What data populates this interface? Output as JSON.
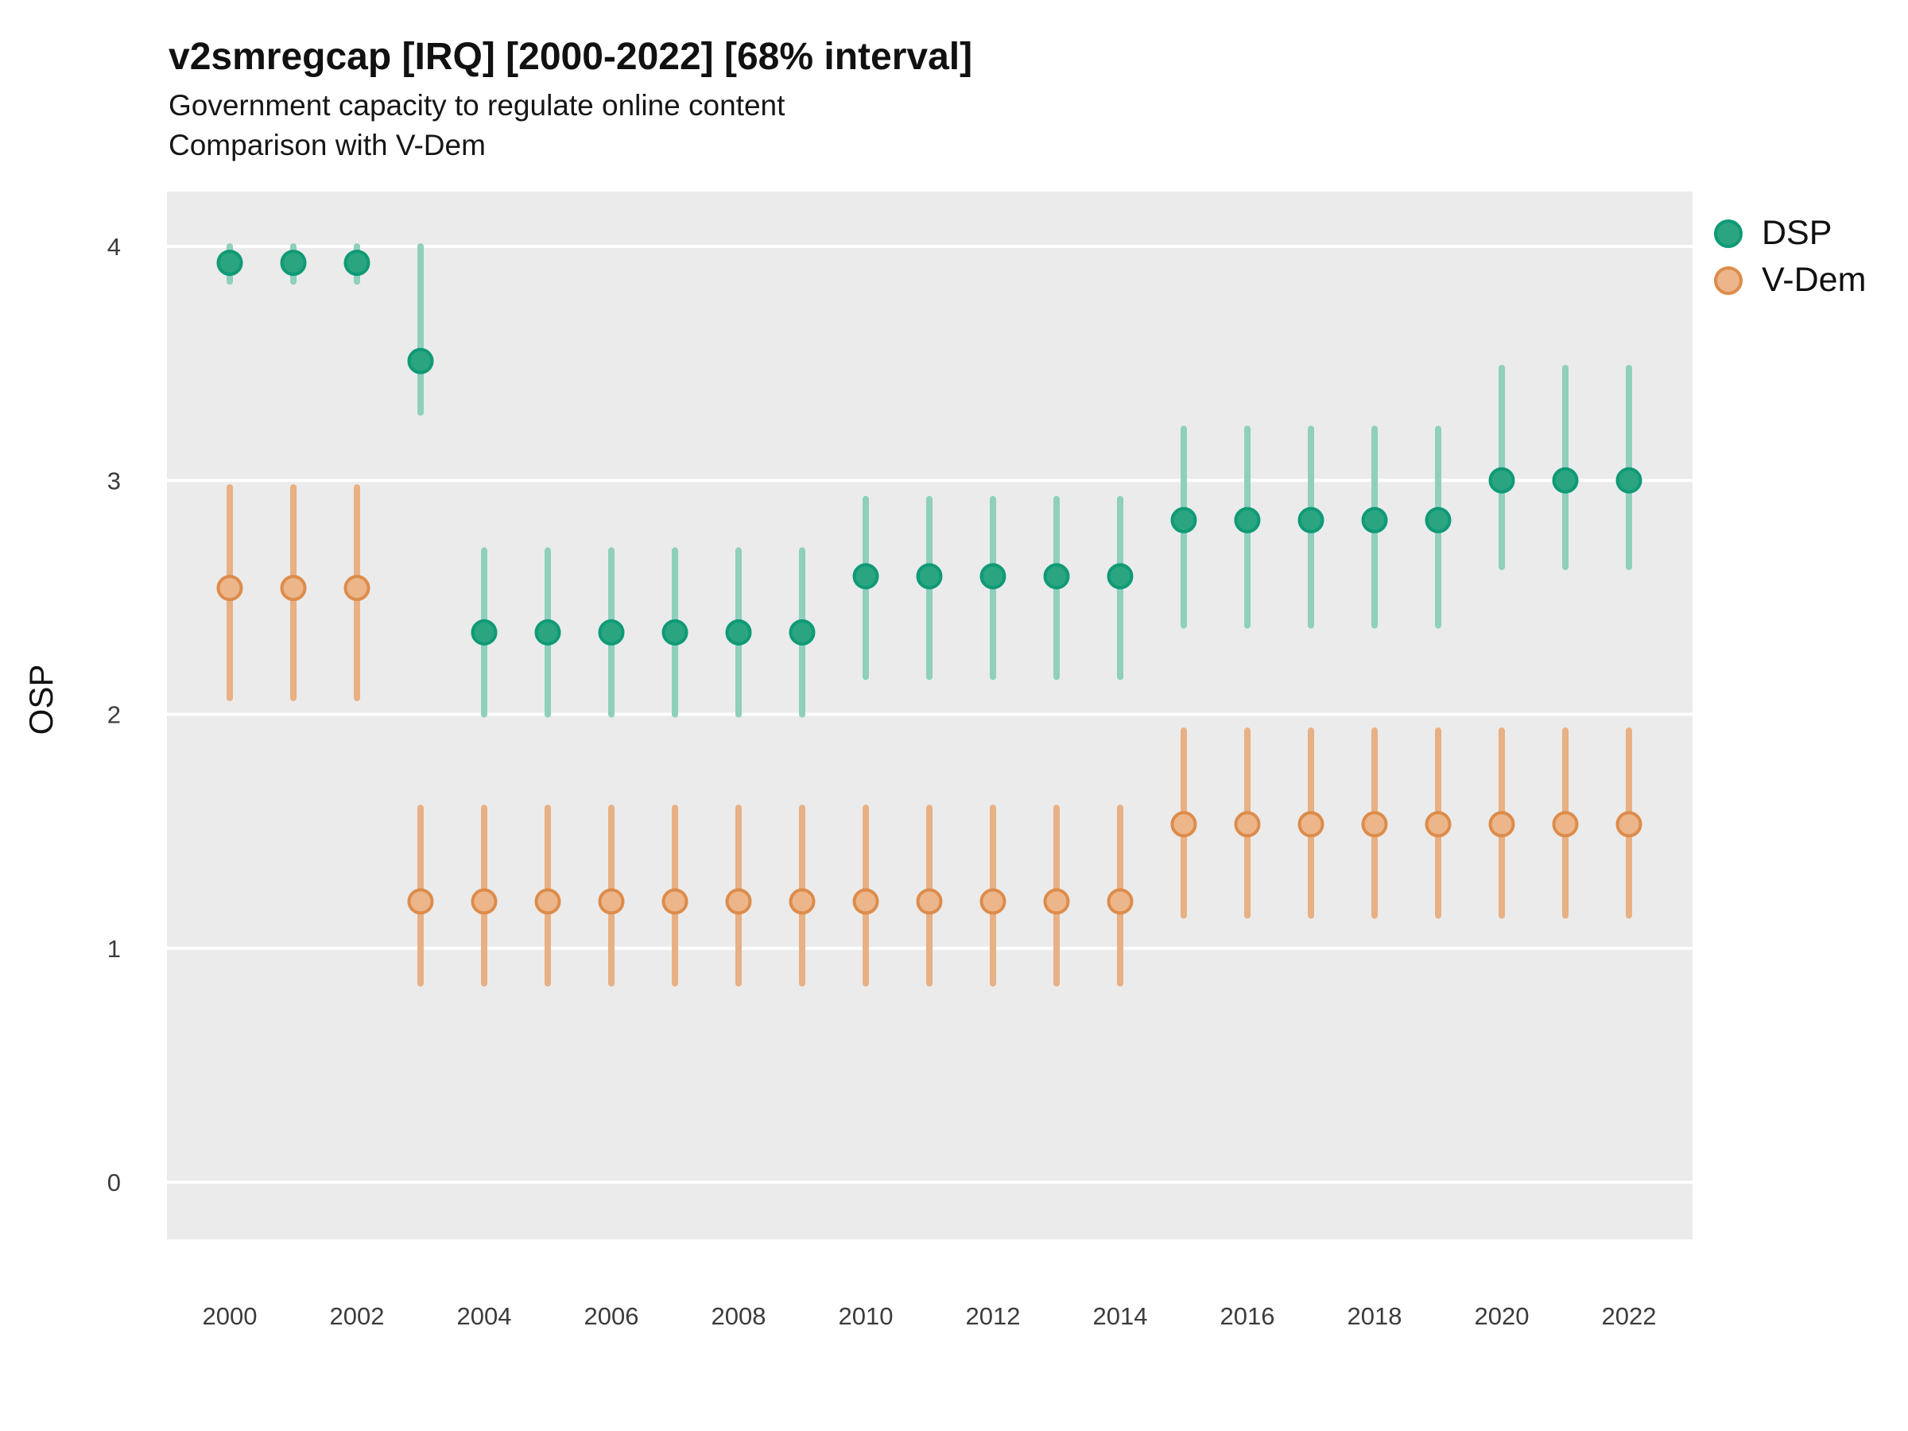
{
  "header": {
    "title": "v2smregcap [IRQ] [2000-2022] [68% interval]",
    "subtitle": "Government capacity to regulate online content",
    "subtitle2": "Comparison with V-Dem"
  },
  "axes": {
    "y_label": "OSP",
    "y_ticks": [
      4,
      3,
      2,
      1,
      0
    ],
    "x_ticks": [
      2000,
      2002,
      2004,
      2006,
      2008,
      2010,
      2012,
      2014,
      2016,
      2018,
      2020,
      2022
    ],
    "y_range": [
      -0.25,
      4.24
    ],
    "x_range": [
      1999,
      2023
    ],
    "grid": "major-horizontal-white-on-gray"
  },
  "legend": {
    "position": "right",
    "items": [
      {
        "label": "DSP",
        "marker": "filled-circle"
      },
      {
        "label": "V-Dem",
        "marker": "filled-circle"
      }
    ]
  },
  "colors": {
    "panel_bg": "#ebebeb",
    "gridline": "#ffffff",
    "tick_label": "#3c3c3c",
    "dsp_point": "#2aa57f",
    "dsp_ring": "#0f9a76",
    "dsp_bar": "#8ed0bb",
    "vdem_point": "#ecb68a",
    "vdem_ring": "#dd8c4b",
    "vdem_bar": "#e8b083"
  },
  "chart_data": {
    "type": "pointrange",
    "title": "v2smregcap [IRQ] [2000-2022] [68% interval]",
    "subtitle": "Government capacity to regulate online content",
    "note": "Comparison with V-Dem",
    "interval": "68%",
    "xlabel": "",
    "ylabel": "OSP",
    "ylim": [
      -0.25,
      4.24
    ],
    "x": [
      2000,
      2001,
      2002,
      2003,
      2004,
      2005,
      2006,
      2007,
      2008,
      2009,
      2010,
      2011,
      2012,
      2013,
      2014,
      2015,
      2016,
      2017,
      2018,
      2019,
      2020,
      2021,
      2022
    ],
    "series": [
      {
        "name": "DSP",
        "est": [
          3.93,
          3.93,
          3.93,
          3.51,
          2.35,
          2.35,
          2.35,
          2.35,
          2.35,
          2.35,
          2.59,
          2.59,
          2.59,
          2.59,
          2.59,
          2.83,
          2.83,
          2.83,
          2.83,
          2.83,
          3.0,
          3.0,
          3.0
        ],
        "lo": [
          3.85,
          3.85,
          3.85,
          3.29,
          2.0,
          2.0,
          2.0,
          2.0,
          2.0,
          2.0,
          2.16,
          2.16,
          2.16,
          2.16,
          2.16,
          2.38,
          2.38,
          2.38,
          2.38,
          2.38,
          2.63,
          2.63,
          2.63
        ],
        "hi": [
          4.0,
          4.0,
          4.0,
          4.0,
          2.7,
          2.7,
          2.7,
          2.7,
          2.7,
          2.7,
          2.92,
          2.92,
          2.92,
          2.92,
          2.92,
          3.22,
          3.22,
          3.22,
          3.22,
          3.22,
          3.48,
          3.48,
          3.48
        ]
      },
      {
        "name": "V-Dem",
        "est": [
          2.54,
          2.54,
          2.54,
          1.2,
          1.2,
          1.2,
          1.2,
          1.2,
          1.2,
          1.2,
          1.2,
          1.2,
          1.2,
          1.2,
          1.2,
          1.53,
          1.53,
          1.53,
          1.53,
          1.53,
          1.53,
          1.53,
          1.53
        ],
        "lo": [
          2.07,
          2.07,
          2.07,
          0.85,
          0.85,
          0.85,
          0.85,
          0.85,
          0.85,
          0.85,
          0.85,
          0.85,
          0.85,
          0.85,
          0.85,
          1.14,
          1.14,
          1.14,
          1.14,
          1.14,
          1.14,
          1.14,
          1.14
        ],
        "hi": [
          2.97,
          2.97,
          2.97,
          1.6,
          1.6,
          1.6,
          1.6,
          1.6,
          1.6,
          1.6,
          1.6,
          1.6,
          1.6,
          1.6,
          1.6,
          1.93,
          1.93,
          1.93,
          1.93,
          1.93,
          1.93,
          1.93,
          1.93
        ]
      }
    ]
  }
}
